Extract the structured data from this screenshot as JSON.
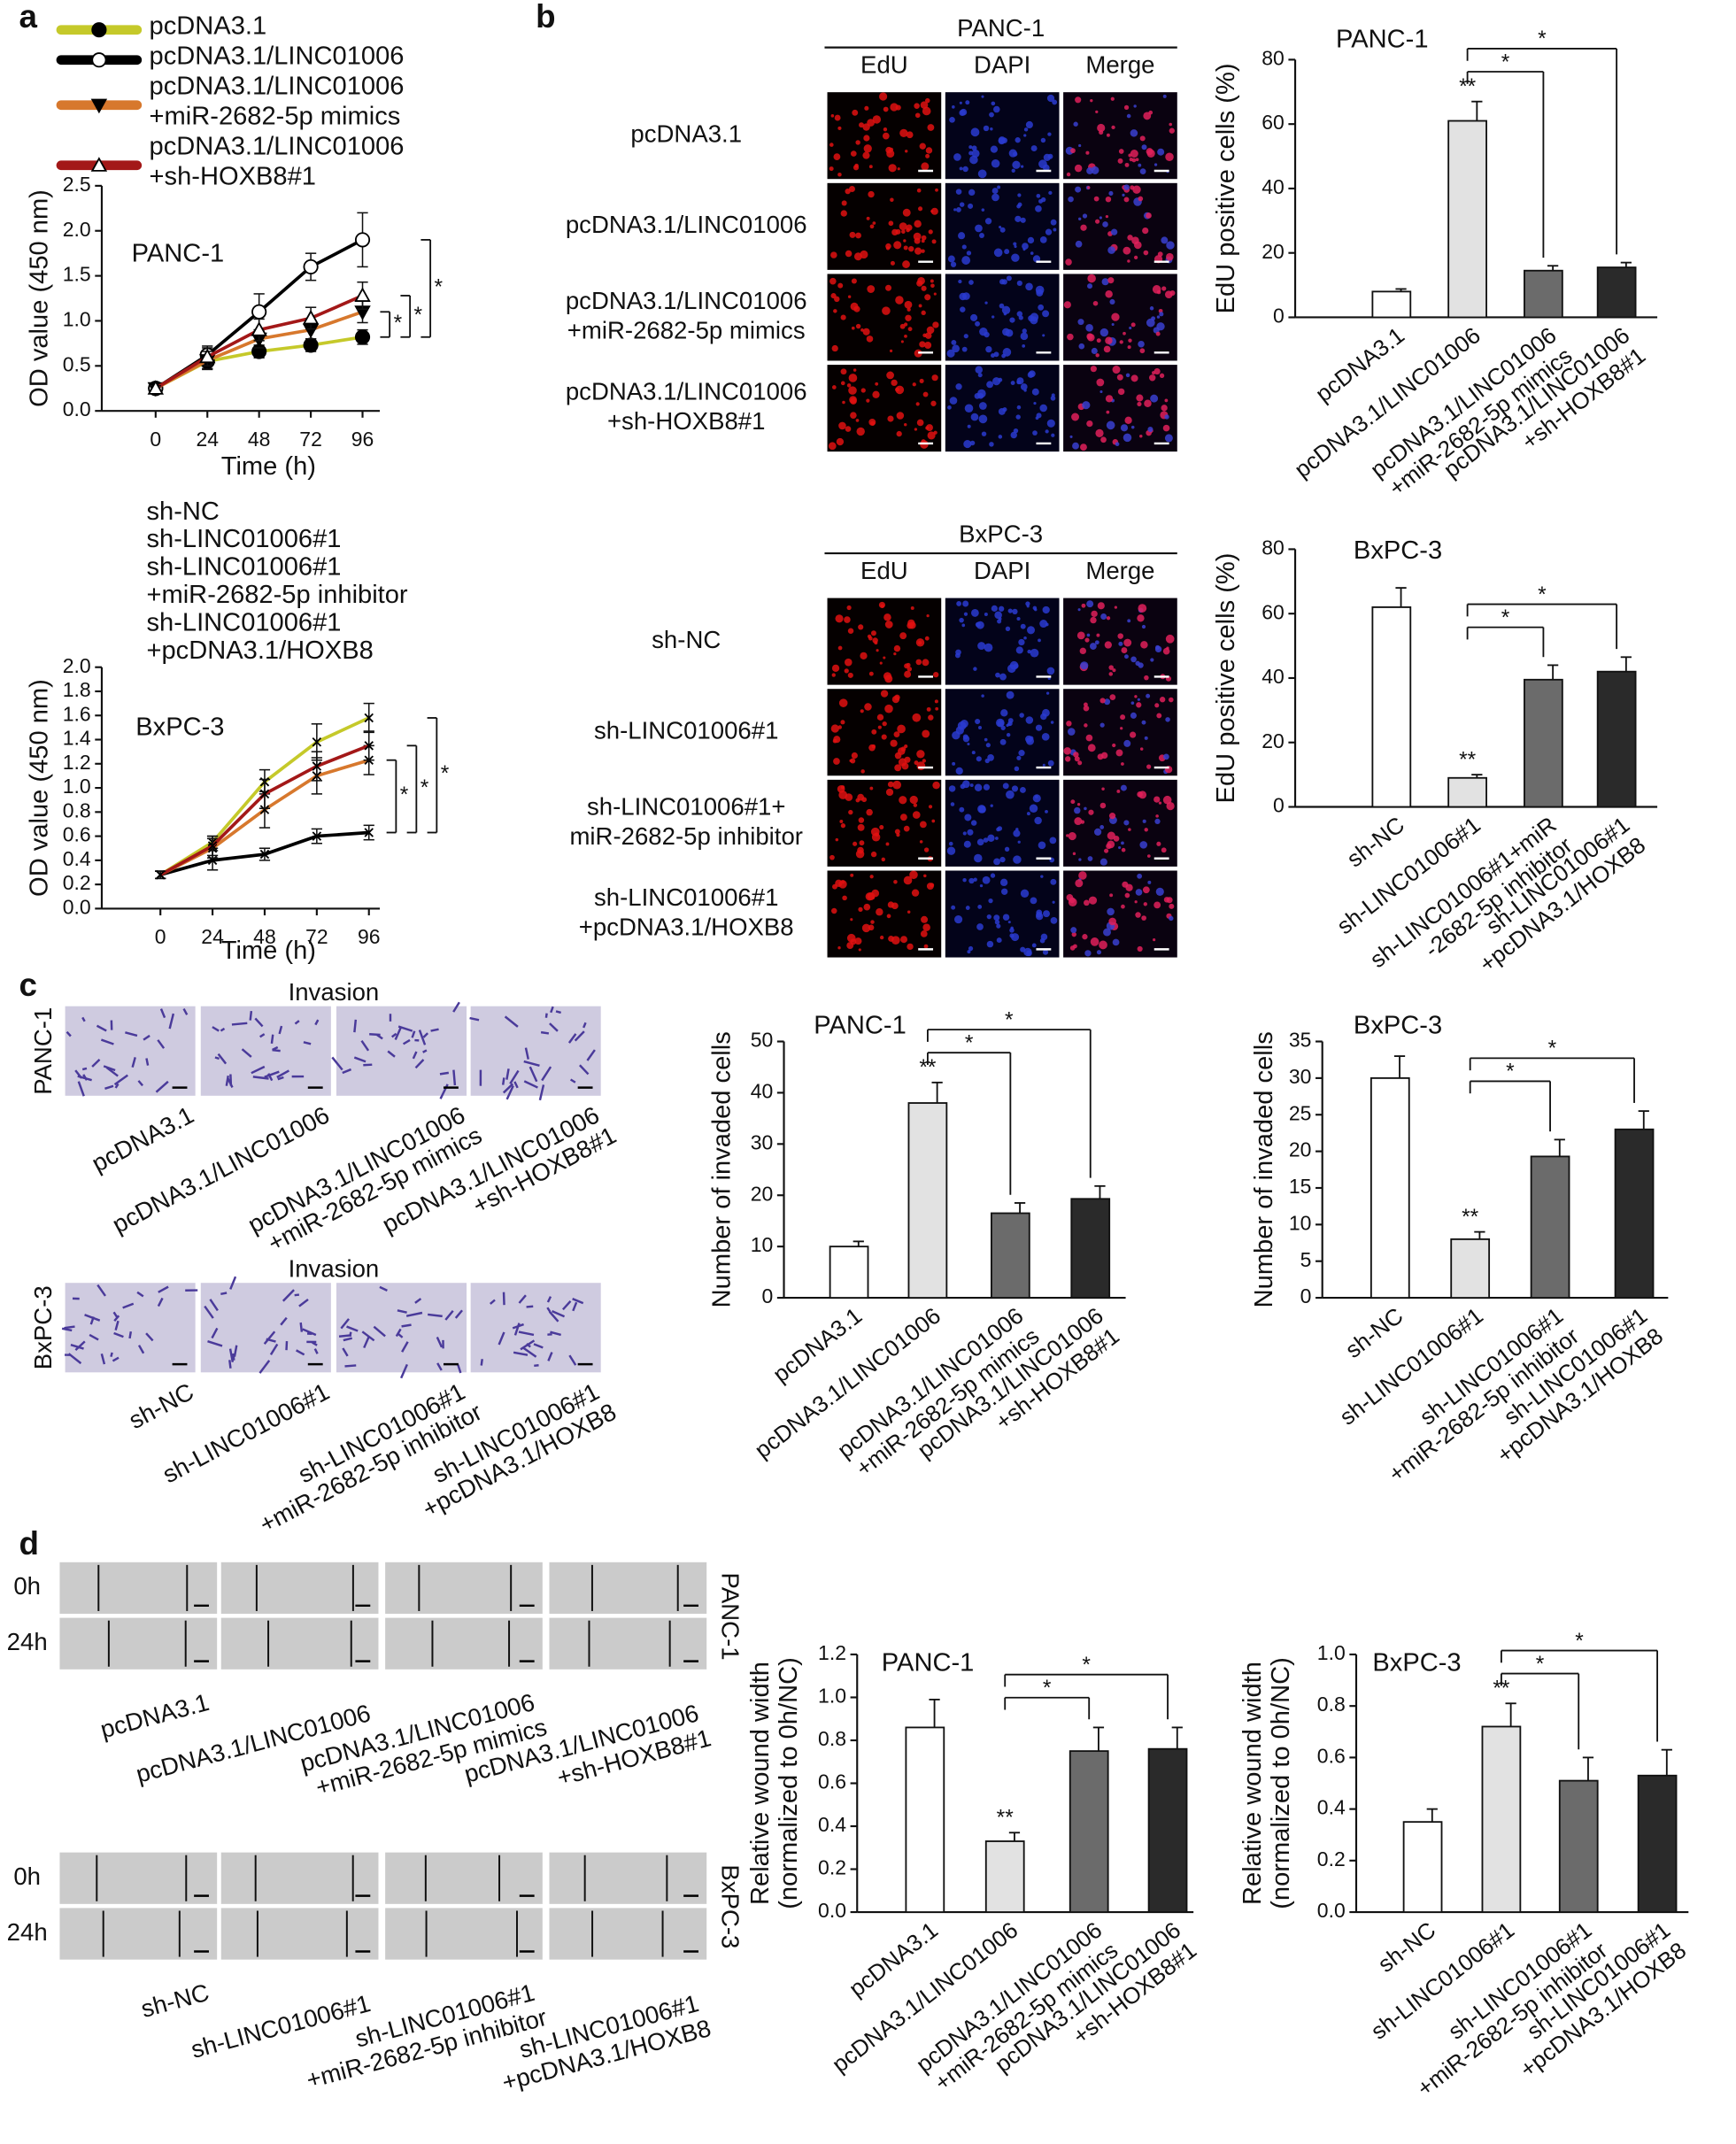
{
  "panel_letters": [
    "a",
    "b",
    "c",
    "d"
  ],
  "figure": {
    "b_panc": {
      "title": "PANC-1",
      "channels": [
        "EdU",
        "DAPI",
        "Merge"
      ],
      "rows": [
        [
          "pcDNA3.1"
        ],
        [
          "pcDNA3.1/LINC01006"
        ],
        [
          "pcDNA3.1/LINC01006",
          "+miR-2682-5p mimics"
        ],
        [
          "pcDNA3.1/LINC01006",
          "+sh-HOXB8#1"
        ]
      ]
    },
    "b_bx": {
      "title": "BxPC-3",
      "channels": [
        "EdU",
        "DAPI",
        "Merge"
      ],
      "rows": [
        [
          "sh-NC"
        ],
        [
          "sh-LINC01006#1"
        ],
        [
          "sh-LINC01006#1+",
          "miR-2682-5p inhibitor"
        ],
        [
          "sh-LINC01006#1",
          "+pcDNA3.1/HOXB8"
        ]
      ]
    },
    "c": {
      "title": "Invasion",
      "cell_lines": [
        "PANC-1",
        "BxPC-3"
      ],
      "columns_panc": [
        [
          "pcDNA3.1"
        ],
        [
          "pcDNA3.1/LINC01006"
        ],
        [
          "pcDNA3.1/LINC01006",
          "+miR-2682-5p mimics"
        ],
        [
          "pcDNA3.1/LINC01006",
          "+sh-HOXB8#1"
        ]
      ],
      "columns_bx": [
        [
          "sh-NC"
        ],
        [
          "sh-LINC01006#1"
        ],
        [
          "sh-LINC01006#1",
          "+miR-2682-5p inhibitor"
        ],
        [
          "sh-LINC01006#1",
          "+pcDNA3.1/HOXB8"
        ]
      ]
    },
    "d": {
      "times": [
        "0h",
        "24h"
      ],
      "cell_lines": [
        "PANC-1",
        "BxPC-3"
      ],
      "columns_panc": [
        [
          "pcDNA3.1"
        ],
        [
          "pcDNA3.1/LINC01006"
        ],
        [
          "pcDNA3.1/LINC01006",
          "+miR-2682-5p mimics"
        ],
        [
          "pcDNA3.1/LINC01006",
          "+sh-HOXB8#1"
        ]
      ],
      "columns_bx": [
        [
          "sh-NC"
        ],
        [
          "sh-LINC01006#1"
        ],
        [
          "sh-LINC01006#1",
          "+miR-2682-5p inhibitor"
        ],
        [
          "sh-LINC01006#1",
          "+pcDNA3.1/HOXB8"
        ]
      ]
    }
  },
  "chart_data": [
    {
      "type": "line",
      "title": "PANC-1",
      "x_label": "Time (h)",
      "y_label": "OD value (450 nm)",
      "x": [
        0,
        24,
        48,
        72,
        96
      ],
      "xlim": [
        -25,
        104
      ],
      "xticks": [
        0,
        24,
        48,
        72,
        96
      ],
      "ylim": [
        0,
        2.5
      ],
      "yticks": [
        {
          "value": 0,
          "label": "0.0"
        },
        0.5,
        {
          "value": 1,
          "label": "1.0"
        },
        1.5,
        {
          "value": 2,
          "label": "2.0"
        },
        2.5
      ],
      "legend_markers": true,
      "series": [
        {
          "name": [
            "pcDNA3.1"
          ],
          "color": "#c5c92a",
          "marker": "filled-circle",
          "values": [
            0.25,
            0.55,
            0.66,
            0.73,
            0.82
          ],
          "errors": [
            0.03,
            0.08,
            0.07,
            0.07,
            0.08
          ]
        },
        {
          "name": [
            "pcDNA3.1/LINC01006"
          ],
          "color": "#000000",
          "marker": "open-circle",
          "values": [
            0.25,
            0.62,
            1.1,
            1.6,
            1.9
          ],
          "errors": [
            0.03,
            0.1,
            0.2,
            0.15,
            0.3
          ]
        },
        {
          "name": [
            "pcDNA3.1/LINC01006",
            "+miR-2682-5p mimics"
          ],
          "color": "#d7782d",
          "marker": "filled-triangle-down",
          "values": [
            0.25,
            0.56,
            0.8,
            0.9,
            1.1
          ],
          "errors": [
            0.03,
            0.1,
            0.1,
            0.1,
            0.12
          ]
        },
        {
          "name": [
            "pcDNA3.1/LINC01006",
            "+sh-HOXB8#1"
          ],
          "color": "#a31818",
          "marker": "open-triangle-up",
          "values": [
            0.25,
            0.6,
            0.9,
            1.03,
            1.28
          ],
          "errors": [
            0.03,
            0.1,
            0.12,
            0.12,
            0.15
          ]
        }
      ],
      "brackets": [
        {
          "text": "*",
          "from": 2,
          "to": 0
        },
        {
          "text": "*",
          "from": 3,
          "to": 0
        },
        {
          "text": "*",
          "from": 1,
          "to": 0
        }
      ]
    },
    {
      "type": "line",
      "title": "BxPC-3",
      "x_label": "Time (h)",
      "y_label": "OD value (450 nm)",
      "x": [
        0,
        24,
        48,
        72,
        96
      ],
      "xlim": [
        -27,
        101
      ],
      "xticks": [
        0,
        24,
        48,
        72,
        96
      ],
      "ylim": [
        0,
        2
      ],
      "yticks": [
        {
          "value": 0,
          "label": "0.0"
        },
        0.2,
        0.4,
        0.6,
        0.8,
        {
          "value": 1,
          "label": "1.0"
        },
        1.2,
        1.4,
        1.6,
        1.8,
        {
          "value": 2,
          "label": "2.0"
        }
      ],
      "legend_markers": false,
      "series": [
        {
          "name": [
            "sh-NC"
          ],
          "color": "#c5c92a",
          "values": [
            0.28,
            0.55,
            1.05,
            1.38,
            1.58
          ],
          "errors": [
            0.03,
            0.05,
            0.1,
            0.15,
            0.12
          ]
        },
        {
          "name": [
            "sh-LINC01006#1"
          ],
          "color": "#000000",
          "values": [
            0.28,
            0.4,
            0.45,
            0.6,
            0.63
          ],
          "errors": [
            0.03,
            0.08,
            0.05,
            0.06,
            0.06
          ]
        },
        {
          "name": [
            "sh-LINC01006#1",
            "+miR-2682-5p inhibitor"
          ],
          "color": "#d7782d",
          "values": [
            0.28,
            0.5,
            0.82,
            1.1,
            1.23
          ],
          "errors": [
            0.03,
            0.08,
            0.15,
            0.15,
            0.12
          ]
        },
        {
          "name": [
            "sh-LINC01006#1",
            "+pcDNA3.1/HOXB8"
          ],
          "color": "#a31818",
          "values": [
            0.28,
            0.52,
            0.95,
            1.18,
            1.35
          ],
          "errors": [
            0.03,
            0.08,
            0.12,
            0.12,
            0.12
          ]
        }
      ],
      "brackets": [
        {
          "text": "*",
          "from": 2,
          "to": 1
        },
        {
          "text": "*",
          "from": 3,
          "to": 1
        },
        {
          "text": "*",
          "from": 0,
          "to": 1
        }
      ]
    },
    {
      "type": "bar",
      "title": "PANC-1",
      "y_label": [
        "EdU positive cells (%)"
      ],
      "categories": [
        [
          "pcDNA3.1"
        ],
        [
          "pcDNA3.1/LINC01006"
        ],
        [
          "pcDNA3.1/LINC01006",
          "+miR-2682-5p mimics"
        ],
        [
          "pcDNA3.1/LINC01006",
          "+sh-HOXB8#1"
        ]
      ],
      "values": [
        8,
        61,
        14.5,
        15.5
      ],
      "errors": [
        0.8,
        6,
        1.5,
        1.5
      ],
      "colors": [
        "#ffffff",
        "#e2e2e2",
        "#6b6b6b",
        "#2a2a2a"
      ],
      "ylim": [
        0,
        80
      ],
      "yticks": [
        0,
        20,
        40,
        60,
        80
      ],
      "marks": [
        {
          "text": "**",
          "bar": 1
        }
      ],
      "brackets": [
        {
          "text": "*",
          "from": 1,
          "to": 2
        },
        {
          "text": "*",
          "from": 1,
          "to": 3
        }
      ]
    },
    {
      "type": "bar",
      "title": "BxPC-3",
      "y_label": [
        "EdU positive cells (%)"
      ],
      "categories": [
        [
          "sh-NC"
        ],
        [
          "sh-LINC01006#1"
        ],
        [
          "sh-LINC01006#1+miR",
          "-2682-5p inhibitor"
        ],
        [
          "sh-LINC01006#1",
          "+pcDNA3.1/HOXB8"
        ]
      ],
      "values": [
        62,
        9,
        39.5,
        42
      ],
      "errors": [
        6,
        1,
        4.5,
        4.5
      ],
      "colors": [
        "#ffffff",
        "#e2e2e2",
        "#6b6b6b",
        "#2a2a2a"
      ],
      "ylim": [
        0,
        80
      ],
      "yticks": [
        0,
        20,
        40,
        60,
        80
      ],
      "marks": [
        {
          "text": "**",
          "bar": 1
        }
      ],
      "brackets": [
        {
          "text": "*",
          "from": 1,
          "to": 2
        },
        {
          "text": "*",
          "from": 1,
          "to": 3
        }
      ]
    },
    {
      "type": "bar",
      "title": "PANC-1",
      "y_label": [
        "Number of invaded cells"
      ],
      "categories": [
        [
          "pcDNA3.1"
        ],
        [
          "pcDNA3.1/LINC01006"
        ],
        [
          "pcDNA3.1/LINC01006",
          "+miR-2682-5p mimics"
        ],
        [
          "pcDNA3.1/LINC01006",
          "+sh-HOXB8#1"
        ]
      ],
      "values": [
        10,
        38,
        16.5,
        19.3
      ],
      "errors": [
        1,
        4,
        2,
        2.5
      ],
      "colors": [
        "#ffffff",
        "#e2e2e2",
        "#6b6b6b",
        "#2a2a2a"
      ],
      "ylim": [
        0,
        50
      ],
      "yticks": [
        0,
        10,
        20,
        30,
        40,
        50
      ],
      "marks": [
        {
          "text": "**",
          "bar": 1
        }
      ],
      "brackets": [
        {
          "text": "*",
          "from": 1,
          "to": 2
        },
        {
          "text": "*",
          "from": 1,
          "to": 3
        }
      ]
    },
    {
      "type": "bar",
      "title": "BxPC-3",
      "y_label": [
        "Number of invaded cells"
      ],
      "categories": [
        [
          "sh-NC"
        ],
        [
          "sh-LINC01006#1"
        ],
        [
          "sh-LINC01006#1",
          "+miR-2682-5p inhibitor"
        ],
        [
          "sh-LINC01006#1",
          "+pcDNA3.1/HOXB8"
        ]
      ],
      "values": [
        30,
        8,
        19.3,
        23
      ],
      "errors": [
        3,
        1,
        2.3,
        2.5
      ],
      "colors": [
        "#ffffff",
        "#e2e2e2",
        "#6b6b6b",
        "#2a2a2a"
      ],
      "ylim": [
        0,
        35
      ],
      "yticks": [
        0,
        5,
        10,
        15,
        20,
        25,
        30,
        35
      ],
      "marks": [
        {
          "text": "**",
          "bar": 1
        }
      ],
      "brackets": [
        {
          "text": "*",
          "from": 1,
          "to": 2
        },
        {
          "text": "*",
          "from": 1,
          "to": 3
        }
      ]
    },
    {
      "type": "bar",
      "title": "PANC-1",
      "y_label": [
        "Relative wound width",
        "(normalized to 0h/NC)"
      ],
      "categories": [
        [
          "pcDNA3.1"
        ],
        [
          "pcDNA3.1/LINC01006"
        ],
        [
          "pcDNA3.1/LINC01006",
          "+miR-2682-5p mimics"
        ],
        [
          "pcDNA3.1/LINC01006",
          "+sh-HOXB8#1"
        ]
      ],
      "values": [
        0.86,
        0.33,
        0.75,
        0.76
      ],
      "errors": [
        0.13,
        0.04,
        0.11,
        0.1
      ],
      "colors": [
        "#ffffff",
        "#e2e2e2",
        "#6b6b6b",
        "#2a2a2a"
      ],
      "ylim": [
        0,
        1.2
      ],
      "yticks": [
        {
          "value": 0,
          "label": "0.0"
        },
        0.2,
        0.4,
        0.6,
        0.8,
        {
          "value": 1,
          "label": "1.0"
        },
        1.2
      ],
      "marks": [
        {
          "text": "**",
          "bar": 1
        }
      ],
      "brackets": [
        {
          "text": "*",
          "from": 1,
          "to": 2
        },
        {
          "text": "*",
          "from": 1,
          "to": 3
        }
      ]
    },
    {
      "type": "bar",
      "title": "BxPC-3",
      "y_label": [
        "Relative wound width",
        "(normalized to 0h/NC)"
      ],
      "categories": [
        [
          "sh-NC"
        ],
        [
          "sh-LINC01006#1"
        ],
        [
          "sh-LINC01006#1",
          "+miR-2682-5p inhibitor"
        ],
        [
          "sh-LINC01006#1",
          "+pcDNA3.1/HOXB8"
        ]
      ],
      "values": [
        0.35,
        0.72,
        0.51,
        0.53
      ],
      "errors": [
        0.05,
        0.09,
        0.09,
        0.1
      ],
      "colors": [
        "#ffffff",
        "#e2e2e2",
        "#6b6b6b",
        "#2a2a2a"
      ],
      "ylim": [
        0,
        1
      ],
      "yticks": [
        {
          "value": 0,
          "label": "0.0"
        },
        0.2,
        0.4,
        0.6,
        0.8,
        {
          "value": 1,
          "label": "1.0"
        }
      ],
      "marks": [
        {
          "text": "**",
          "bar": 1
        }
      ],
      "brackets": [
        {
          "text": "*",
          "from": 1,
          "to": 2
        },
        {
          "text": "*",
          "from": 1,
          "to": 3
        }
      ]
    }
  ]
}
